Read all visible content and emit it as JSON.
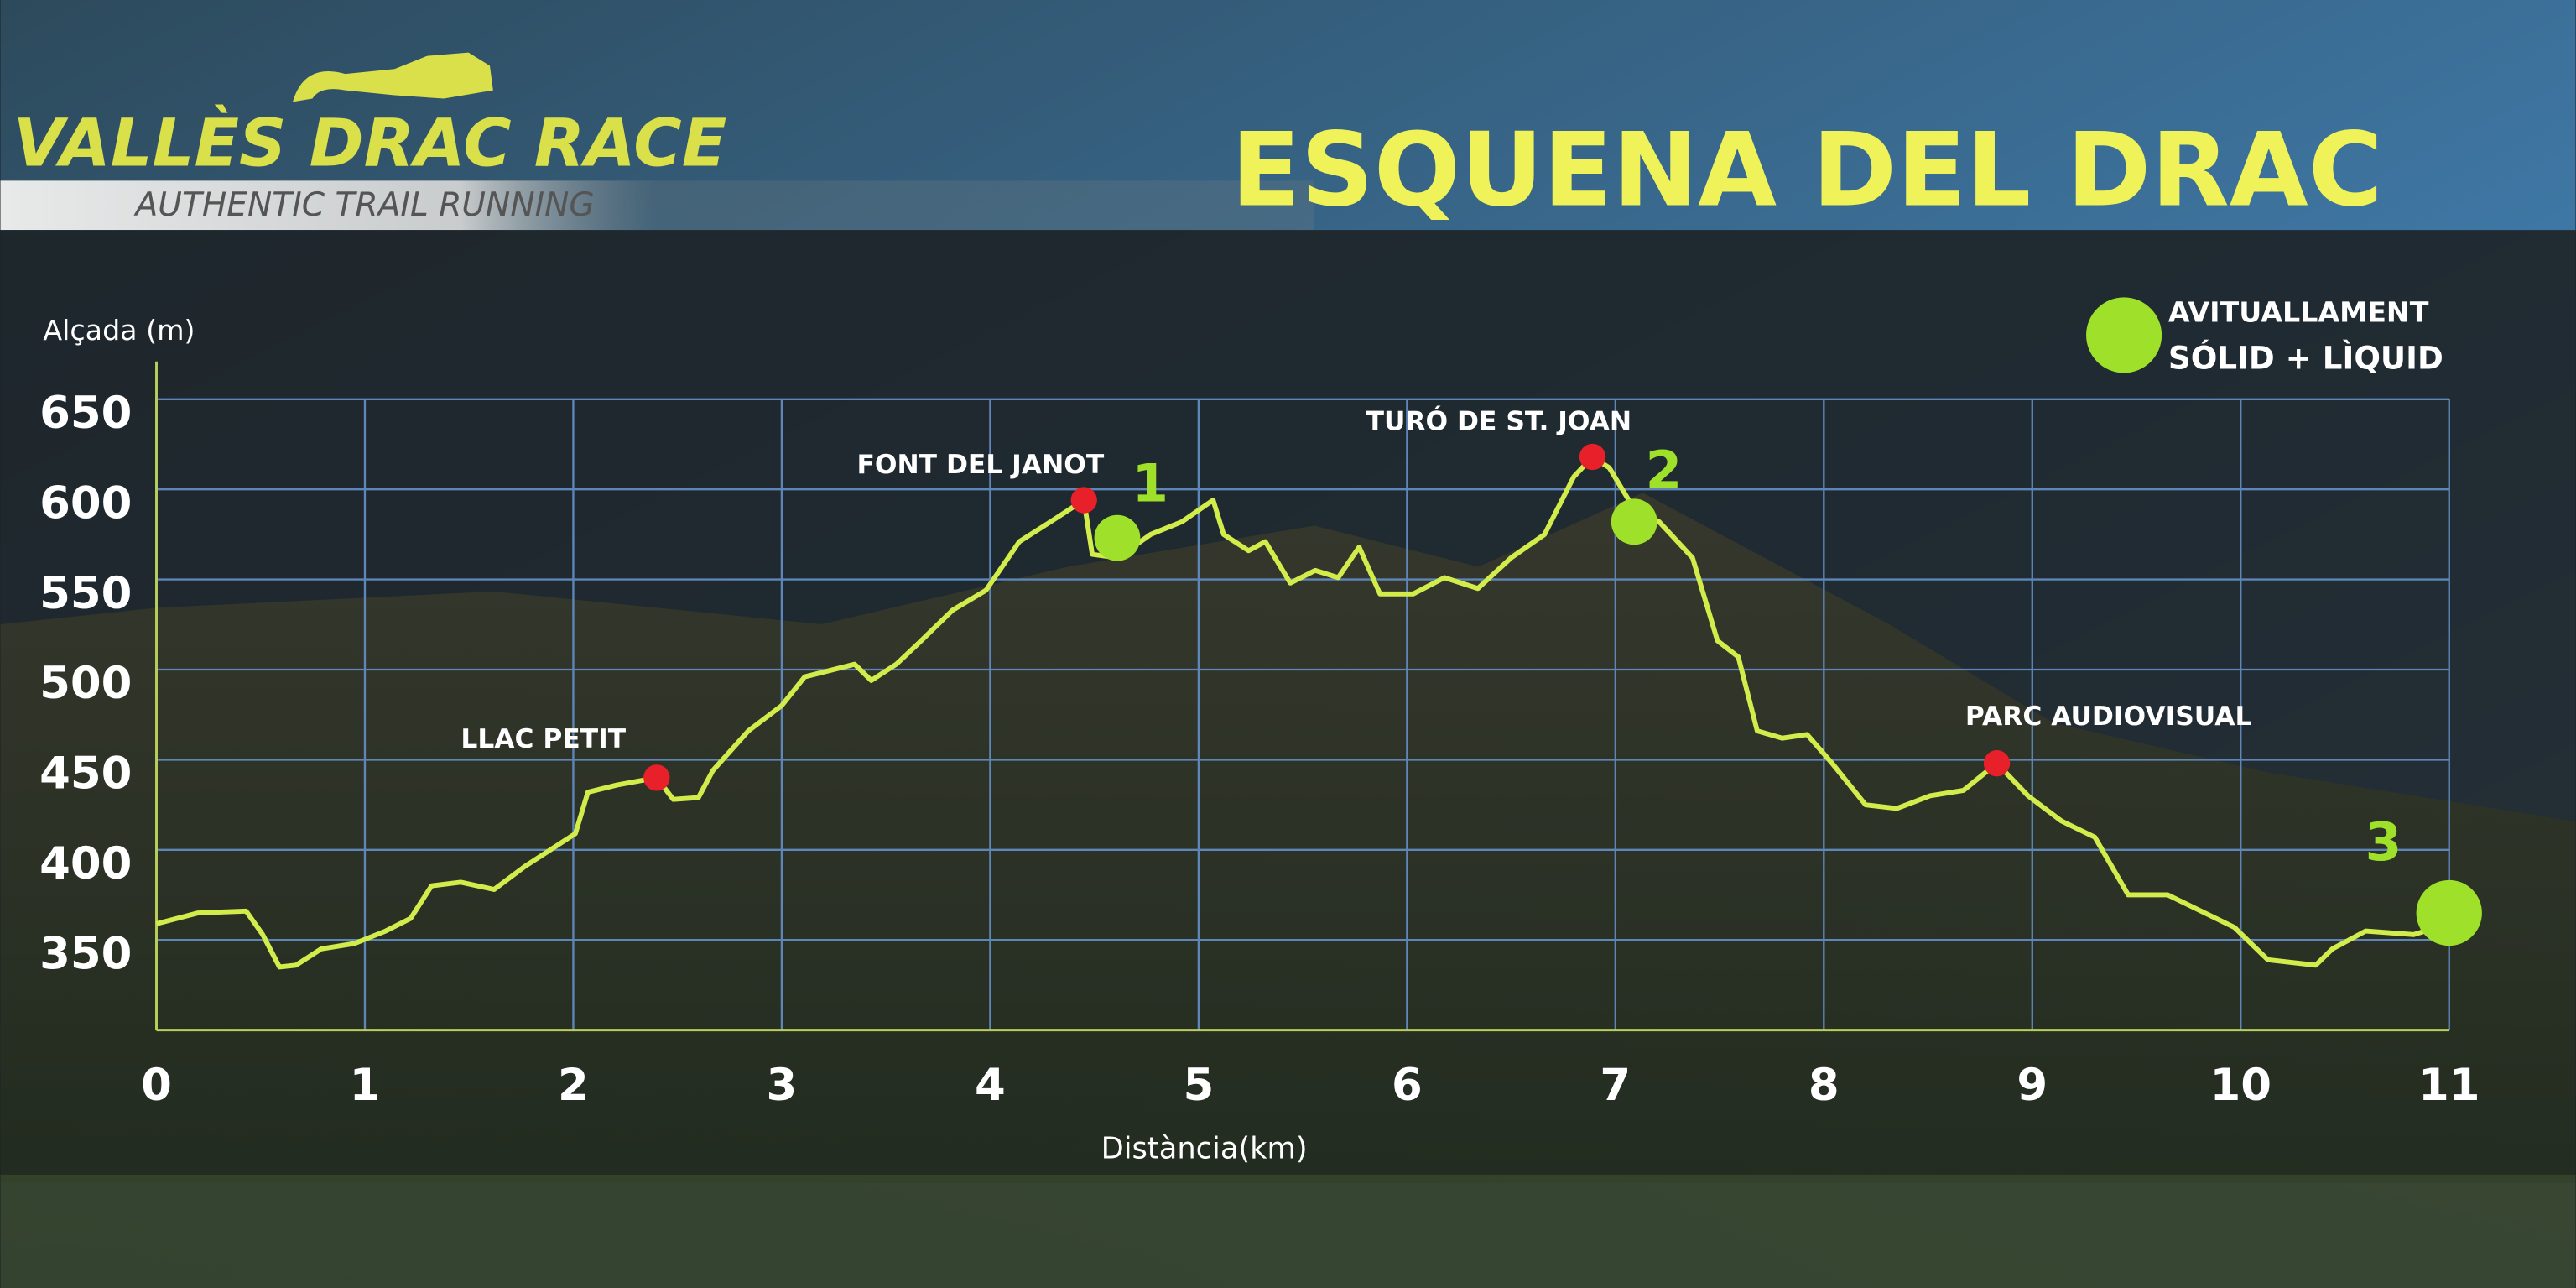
{
  "header": {
    "brand": "VALLÈS DRAC RACE",
    "tagline": "AUTHENTIC TRAIL RUNNING"
  },
  "chart_data": {
    "type": "line",
    "title": "ESQUENA DEL DRAC",
    "y_label": "Alçada (m)",
    "x_label": "Distància(km)",
    "xlim": [
      0,
      11
    ],
    "xticks": [
      0,
      1,
      2,
      3,
      4,
      5,
      6,
      7,
      8,
      9,
      10,
      11
    ],
    "ylim": [
      300,
      650
    ],
    "yticks": [
      350,
      400,
      450,
      500,
      550,
      600,
      650
    ],
    "grid": true,
    "color": "#d2ec4c",
    "x": [
      0,
      0.2,
      0.43,
      0.51,
      0.59,
      0.67,
      0.79,
      0.95,
      1.1,
      1.22,
      1.32,
      1.46,
      1.62,
      1.77,
      2.01,
      2.07,
      2.21,
      2.4,
      2.48,
      2.6,
      2.67,
      2.84,
      3.0,
      3.11,
      3.35,
      3.43,
      3.55,
      3.66,
      3.82,
      3.98,
      4.14,
      4.29,
      4.45,
      4.49,
      4.61,
      4.77,
      4.92,
      5.07,
      5.12,
      5.24,
      5.32,
      5.44,
      5.56,
      5.67,
      5.77,
      5.87,
      6.03,
      6.18,
      6.34,
      6.5,
      6.66,
      6.8,
      6.89,
      6.97,
      7.09,
      7.21,
      7.37,
      7.49,
      7.59,
      7.68,
      7.8,
      7.92,
      8.04,
      8.2,
      8.35,
      8.51,
      8.67,
      8.83,
      8.98,
      9.14,
      9.3,
      9.46,
      9.65,
      9.97,
      10.13,
      10.36,
      10.44,
      10.6,
      10.83,
      11.0
    ],
    "values": [
      359,
      365,
      366,
      353,
      335,
      336,
      345,
      348,
      355,
      362,
      380,
      382,
      378,
      391,
      409,
      432,
      436,
      440,
      428,
      429,
      444,
      466,
      480,
      496,
      503,
      494,
      503,
      515,
      533,
      544,
      571,
      582,
      594,
      564,
      562,
      575,
      582,
      594,
      575,
      566,
      571,
      548,
      555,
      551,
      568,
      542,
      542,
      551,
      545,
      562,
      575,
      607,
      618,
      612,
      589,
      582,
      562,
      516,
      507,
      466,
      462,
      464,
      448,
      425,
      423,
      430,
      433,
      448,
      430,
      416,
      407,
      375,
      375,
      357,
      339,
      336,
      345,
      355,
      353,
      359
    ],
    "waypoint_color": "#e8202a",
    "waypoints": [
      {
        "label": "LLAC PETIT",
        "x": 2.4,
        "y": 440
      },
      {
        "label": "FONT DEL JANOT",
        "x": 4.45,
        "y": 594
      },
      {
        "label": "TURÓ DE ST. JOAN",
        "x": 6.89,
        "y": 618
      },
      {
        "label": "PARC AUDIOVISUAL",
        "x": 8.83,
        "y": 448
      }
    ],
    "aid_color": "#9fe02a",
    "aid_stations": [
      {
        "label": "1",
        "x": 4.61,
        "y": 573
      },
      {
        "label": "2",
        "x": 7.09,
        "y": 582
      },
      {
        "label": "3",
        "x": 11.0,
        "y": 365
      }
    ],
    "legend_label": [
      "AVITUALLAMENT",
      "SÓLID + LÌQUID"
    ]
  }
}
